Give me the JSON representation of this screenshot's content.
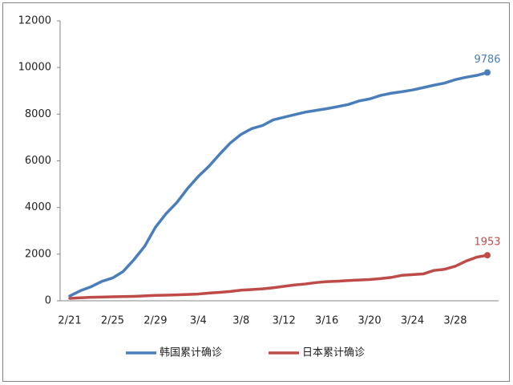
{
  "chart_data": {
    "type": "line",
    "categories": [
      "2/21",
      null,
      null,
      null,
      "2/25",
      null,
      null,
      null,
      "2/29",
      null,
      null,
      null,
      "3/4",
      null,
      null,
      null,
      "3/8",
      null,
      null,
      null,
      "3/12",
      null,
      null,
      null,
      "3/16",
      null,
      null,
      null,
      "3/20",
      null,
      null,
      null,
      "3/24",
      null,
      null,
      null,
      "3/28",
      null,
      null,
      null
    ],
    "series": [
      {
        "name": "韩国累计确诊",
        "color": "#4a7ebb",
        "values": [
          204,
          433,
          602,
          833,
          977,
          1261,
          1766,
          2337,
          3150,
          3736,
          4212,
          4812,
          5328,
          5766,
          6284,
          6767,
          7134,
          7382,
          7513,
          7755,
          7869,
          7979,
          8086,
          8162,
          8236,
          8320,
          8413,
          8565,
          8652,
          8799,
          8897,
          8961,
          9037,
          9137,
          9241,
          9332,
          9478,
          9583,
          9661,
          9786
        ]
      },
      {
        "name": "日本累计确诊",
        "color": "#be4b48",
        "values": [
          105,
          130,
          150,
          160,
          170,
          180,
          190,
          210,
          230,
          240,
          255,
          270,
          290,
          330,
          360,
          400,
          455,
          480,
          510,
          560,
          620,
          680,
          720,
          780,
          820,
          840,
          870,
          890,
          910,
          950,
          1000,
          1090,
          1120,
          1150,
          1300,
          1350,
          1480,
          1700,
          1870,
          1953
        ]
      }
    ],
    "ylim": [
      0,
      12000
    ],
    "yticks": [
      0,
      2000,
      4000,
      6000,
      8000,
      10000,
      12000
    ],
    "grid": false,
    "legend": "bottom"
  }
}
